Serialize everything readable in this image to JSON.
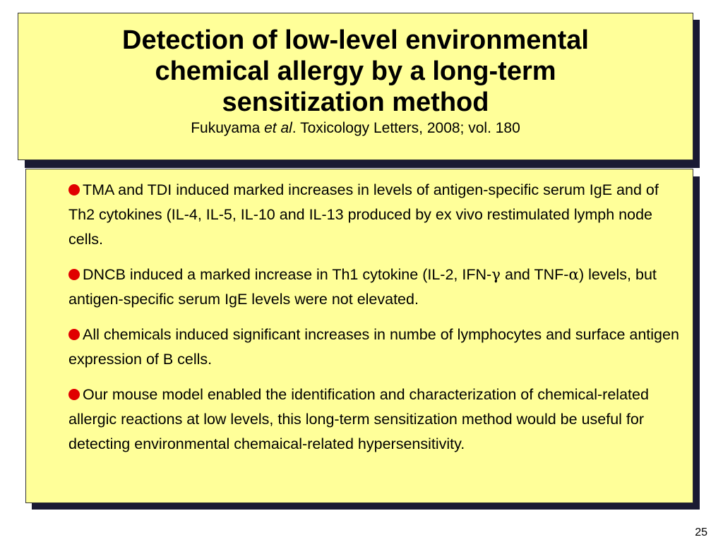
{
  "slide": {
    "title_lines": [
      "Detection of low-level environmental",
      "chemical allergy by a long-term",
      "sensitization method"
    ],
    "citation": {
      "author": "Fukuyama ",
      "etal": "et al",
      "rest": ". Toxicology Letters, 2008; vol. 180"
    },
    "bullets": [
      {
        "text": "TMA and TDI induced marked increases in levels of antigen-specific serum IgE and of Th2 cytokines (IL-4, IL-5, IL-10 and IL-13 produced by ex vivo restimulated lymph node cells."
      },
      {
        "pre": "DNCB induced a marked increase in Th1 cytokine (IL-2, IFN-",
        "gamma": "γ",
        "mid": " and TNF-",
        "alpha": "α",
        "post": ") levels, but antigen-specific serum IgE levels were not elevated."
      },
      {
        "text": "All chemicals induced significant increases in numbe of lymphocytes and surface antigen expression of B cells."
      },
      {
        "text": "Our mouse model enabled the identification and characterization of chemical-related allergic reactions at low levels, this long-term sensitization method would be useful for detecting environmental chemaical-related hypersensitivity."
      }
    ],
    "page_number": "25",
    "colors": {
      "box_fill": "#ffff99",
      "bullet": "#e00000",
      "shadow": "#1a1a33"
    }
  }
}
